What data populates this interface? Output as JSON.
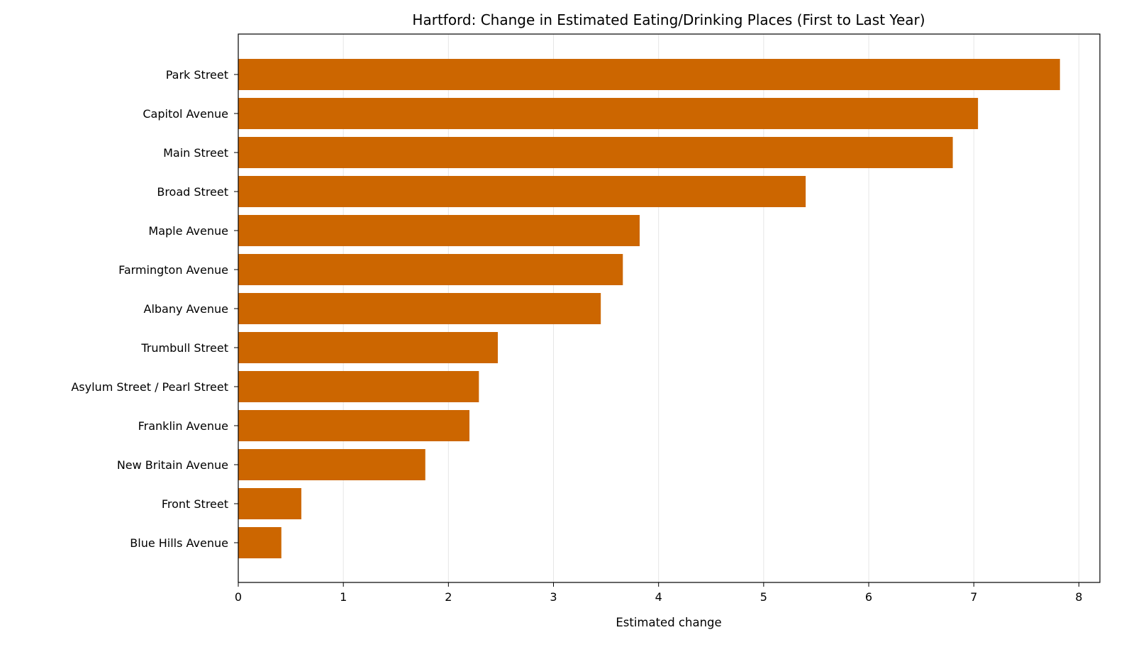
{
  "chart_data": {
    "type": "bar",
    "orientation": "horizontal",
    "title": "Hartford: Change in Estimated Eating/Drinking Places (First to Last Year)",
    "xlabel": "Estimated change",
    "ylabel": "",
    "categories": [
      "Park Street",
      "Capitol Avenue",
      "Main Street",
      "Broad Street",
      "Maple Avenue",
      "Farmington Avenue",
      "Albany Avenue",
      "Trumbull Street",
      "Asylum Street / Pearl Street",
      "Franklin Avenue",
      "New Britain Avenue",
      "Front Street",
      "Blue Hills Avenue"
    ],
    "values": [
      7.82,
      7.04,
      6.8,
      5.4,
      3.82,
      3.66,
      3.45,
      2.47,
      2.29,
      2.2,
      1.78,
      0.6,
      0.41
    ],
    "xlim": [
      0,
      8.2
    ],
    "xticks": [
      "0",
      "1",
      "2",
      "3",
      "4",
      "5",
      "6",
      "7",
      "8"
    ],
    "grid": "vertical",
    "bar_color": "#cc6600"
  }
}
